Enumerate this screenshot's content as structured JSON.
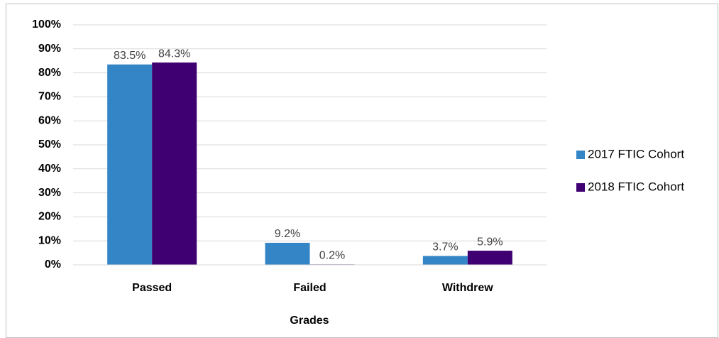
{
  "chart_data": {
    "type": "bar",
    "x_label": "Grades",
    "categories": [
      "Passed",
      "Failed",
      "Withdrew"
    ],
    "series": [
      {
        "name": "2017 FTIC Cohort",
        "color": "#3385c6",
        "values": [
          83.5,
          9.2,
          3.7
        ],
        "value_labels": [
          "83.5%",
          "9.2%",
          "3.7%"
        ]
      },
      {
        "name": "2018 FTIC Cohort",
        "color": "#3f0071",
        "values": [
          84.3,
          0.2,
          5.9
        ],
        "value_labels": [
          "84.3%",
          "0.2%",
          "5.9%"
        ]
      }
    ],
    "ylim": [
      0,
      100
    ],
    "yticks": [
      {
        "value": 0,
        "label": "0%"
      },
      {
        "value": 10,
        "label": "10%"
      },
      {
        "value": 20,
        "label": "20%"
      },
      {
        "value": 30,
        "label": "30%"
      },
      {
        "value": 40,
        "label": "40%"
      },
      {
        "value": 50,
        "label": "50%"
      },
      {
        "value": 60,
        "label": "60%"
      },
      {
        "value": 70,
        "label": "70%"
      },
      {
        "value": 80,
        "label": "80%"
      },
      {
        "value": 90,
        "label": "90%"
      },
      {
        "value": 100,
        "label": "100%"
      }
    ],
    "grid": true,
    "legend": "right"
  }
}
